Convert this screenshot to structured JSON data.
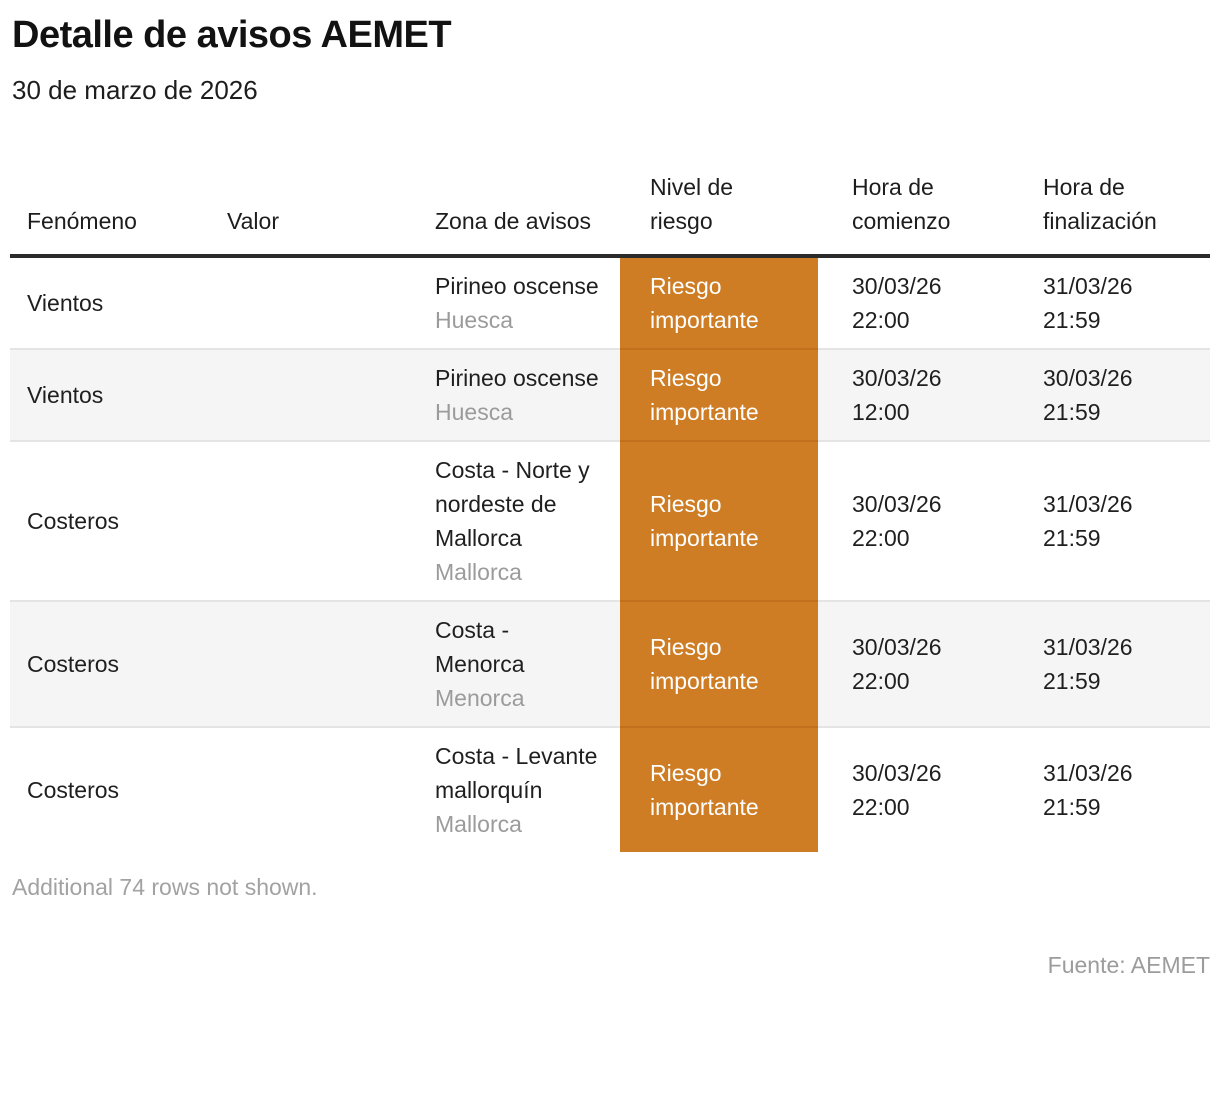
{
  "title": "Detalle de avisos AEMET",
  "subtitle": "30 de marzo de 2026",
  "footnote": "Additional 74 rows not shown.",
  "source": "Fuente: AEMET",
  "colors": {
    "risk_important_bg": "#ce7d24",
    "risk_important_text": "#ffffff",
    "header_rule": "#2b2b2b",
    "row_alt_bg": "#f5f5f5",
    "row_separator": "#e4e4e4",
    "secondary_text": "#9b9b9b"
  },
  "chart_data": {
    "type": "table",
    "title": "Detalle de avisos AEMET",
    "subtitle": "30 de marzo de 2026",
    "columns": [
      "Fenómeno",
      "Valor",
      "Zona de avisos",
      "Nivel de riesgo",
      "Hora de comienzo",
      "Hora de finalización"
    ],
    "rows": [
      {
        "fenomeno": "Vientos",
        "valor": "",
        "zona": "Pirineo oscense",
        "zona_region": "Huesca",
        "nivel": "Riesgo importante",
        "comienzo_fecha": "30/03/26",
        "comienzo_hora": "22:00",
        "fin_fecha": "31/03/26",
        "fin_hora": "21:59"
      },
      {
        "fenomeno": "Vientos",
        "valor": "",
        "zona": "Pirineo oscense",
        "zona_region": "Huesca",
        "nivel": "Riesgo importante",
        "comienzo_fecha": "30/03/26",
        "comienzo_hora": "12:00",
        "fin_fecha": "30/03/26",
        "fin_hora": "21:59"
      },
      {
        "fenomeno": "Costeros",
        "valor": "",
        "zona": "Costa - Norte y nordeste de Mallorca",
        "zona_region": "Mallorca",
        "nivel": "Riesgo importante",
        "comienzo_fecha": "30/03/26",
        "comienzo_hora": "22:00",
        "fin_fecha": "31/03/26",
        "fin_hora": "21:59"
      },
      {
        "fenomeno": "Costeros",
        "valor": "",
        "zona": "Costa - Menorca",
        "zona_region": "Menorca",
        "nivel": "Riesgo importante",
        "comienzo_fecha": "30/03/26",
        "comienzo_hora": "22:00",
        "fin_fecha": "31/03/26",
        "fin_hora": "21:59"
      },
      {
        "fenomeno": "Costeros",
        "valor": "",
        "zona": "Costa - Levante mallorquín",
        "zona_region": "Mallorca",
        "nivel": "Riesgo importante",
        "comienzo_fecha": "30/03/26",
        "comienzo_hora": "22:00",
        "fin_fecha": "31/03/26",
        "fin_hora": "21:59"
      }
    ]
  }
}
